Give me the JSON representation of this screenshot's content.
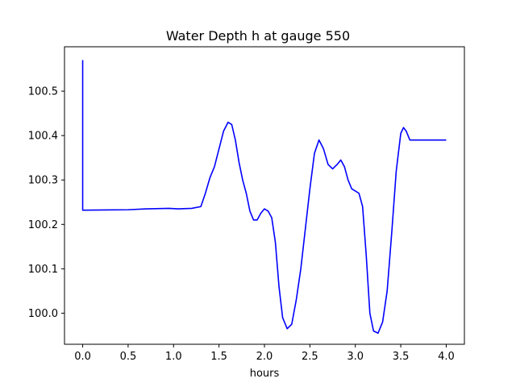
{
  "chart_data": {
    "type": "line",
    "title": "Water Depth h at gauge 550",
    "xlabel": "hours",
    "ylabel": "",
    "xlim": [
      -0.2,
      4.2
    ],
    "ylim": [
      99.93,
      100.6
    ],
    "xticks": [
      0.0,
      0.5,
      1.0,
      1.5,
      2.0,
      2.5,
      3.0,
      3.5,
      4.0
    ],
    "xtick_labels": [
      "0.0",
      "0.5",
      "1.0",
      "1.5",
      "2.0",
      "2.5",
      "3.0",
      "3.5",
      "4.0"
    ],
    "yticks": [
      100.0,
      100.1,
      100.2,
      100.3,
      100.4,
      100.5
    ],
    "ytick_labels": [
      "100.0",
      "100.1",
      "100.2",
      "100.3",
      "100.4",
      "100.5"
    ],
    "grid": false,
    "series": [
      {
        "color": "#0000ff",
        "x": [
          0.0,
          0.0,
          0.0,
          0.5,
          0.7,
          0.95,
          1.05,
          1.2,
          1.3,
          1.35,
          1.4,
          1.45,
          1.5,
          1.55,
          1.6,
          1.64,
          1.68,
          1.72,
          1.76,
          1.8,
          1.84,
          1.88,
          1.92,
          1.96,
          2.0,
          2.04,
          2.08,
          2.12,
          2.16,
          2.2,
          2.25,
          2.3,
          2.35,
          2.4,
          2.45,
          2.5,
          2.55,
          2.6,
          2.65,
          2.7,
          2.75,
          2.8,
          2.84,
          2.88,
          2.92,
          2.96,
          3.0,
          3.04,
          3.08,
          3.12,
          3.16,
          3.2,
          3.25,
          3.3,
          3.35,
          3.4,
          3.45,
          3.5,
          3.53,
          3.56,
          3.6,
          3.65,
          3.7,
          3.75,
          3.8,
          3.85,
          3.9,
          3.95,
          4.0
        ],
        "y": [
          100.57,
          100.45,
          100.232,
          100.233,
          100.235,
          100.236,
          100.235,
          100.236,
          100.24,
          100.27,
          100.305,
          100.33,
          100.37,
          100.41,
          100.43,
          100.425,
          100.39,
          100.34,
          100.3,
          100.27,
          100.23,
          100.21,
          100.21,
          100.225,
          100.235,
          100.23,
          100.215,
          100.16,
          100.06,
          99.99,
          99.965,
          99.975,
          100.03,
          100.1,
          100.19,
          100.28,
          100.36,
          100.39,
          100.37,
          100.335,
          100.325,
          100.335,
          100.345,
          100.33,
          100.3,
          100.28,
          100.275,
          100.27,
          100.24,
          100.13,
          100.0,
          99.96,
          99.955,
          99.98,
          100.05,
          100.18,
          100.32,
          100.405,
          100.418,
          100.41,
          100.39,
          100.39,
          100.39,
          100.39,
          100.39,
          100.39,
          100.39,
          100.39,
          100.39
        ]
      }
    ]
  }
}
